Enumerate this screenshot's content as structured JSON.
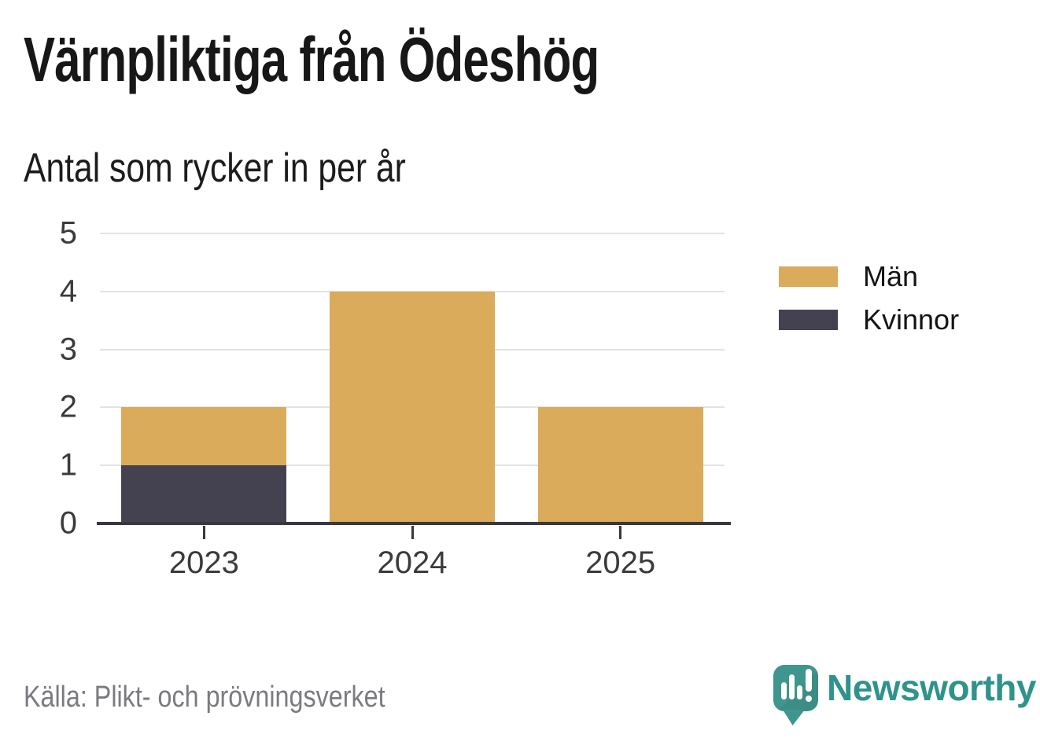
{
  "title": "Värnpliktiga från Ödeshög",
  "subtitle": "Antal som rycker in per år",
  "source": "Källa: Plikt- och prövningsverket",
  "brand": {
    "name": "Newsworthy"
  },
  "colors": {
    "men": "#D9AB5B",
    "women": "#444250",
    "axis": "#39383E",
    "grid": "#E3E3E3",
    "tick_label": "#3B3B3B",
    "source_gray": "#7B7A80",
    "brand_teal": "#2F938B"
  },
  "legend": [
    {
      "label": "Män",
      "color": "#D9AB5B"
    },
    {
      "label": "Kvinnor",
      "color": "#444250"
    }
  ],
  "chart_data": {
    "type": "bar",
    "stacked": true,
    "title": "Värnpliktiga från Ödeshög",
    "subtitle": "Antal som rycker in per år",
    "categories": [
      "2023",
      "2024",
      "2025"
    ],
    "series": [
      {
        "name": "Män",
        "color": "#D9AB5B",
        "values": [
          1,
          4,
          2
        ]
      },
      {
        "name": "Kvinnor",
        "color": "#444250",
        "values": [
          1,
          0,
          0
        ]
      }
    ],
    "stack_totals": [
      2,
      4,
      2
    ],
    "xlabel": "",
    "ylabel": "",
    "y_ticks": [
      0,
      1,
      2,
      3,
      4,
      5
    ],
    "ylim": [
      0,
      5
    ],
    "grid": "horizontal",
    "legend_position": "right"
  }
}
